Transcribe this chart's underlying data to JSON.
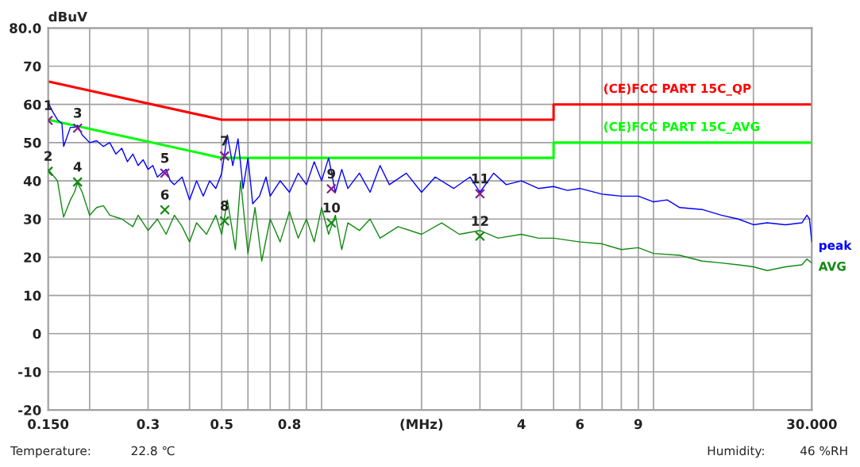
{
  "chart_data": {
    "type": "line",
    "ylabel": "dBuV",
    "log": "x",
    "xlim": [
      0.15,
      30
    ],
    "ylim": [
      -20,
      80
    ],
    "xticks": [
      {
        "value": 0.15,
        "label": "0.150"
      },
      {
        "value": 0.2,
        "label": null
      },
      {
        "value": 0.3,
        "label": "0.3"
      },
      {
        "value": 0.4,
        "label": null
      },
      {
        "value": 0.5,
        "label": "0.5"
      },
      {
        "value": 0.6,
        "label": null
      },
      {
        "value": 0.7,
        "label": null
      },
      {
        "value": 0.8,
        "label": "0.8"
      },
      {
        "value": 0.9,
        "label": null
      },
      {
        "value": 1,
        "label": null
      },
      {
        "value": 2,
        "label": "(MHz)"
      },
      {
        "value": 3,
        "label": null
      },
      {
        "value": 4,
        "label": "4"
      },
      {
        "value": 5,
        "label": null
      },
      {
        "value": 6,
        "label": "6"
      },
      {
        "value": 7,
        "label": null
      },
      {
        "value": 8,
        "label": null
      },
      {
        "value": 9,
        "label": "9"
      },
      {
        "value": 10,
        "label": null
      },
      {
        "value": 20,
        "label": null
      },
      {
        "value": 30,
        "label": "30.000"
      }
    ],
    "yticks": [
      {
        "value": 80,
        "label": "80.0"
      },
      70,
      60,
      50,
      40,
      30,
      20,
      10,
      0,
      -10,
      -20
    ],
    "grid": true,
    "legend": false,
    "series": [
      {
        "name": "(CE)FCC PART 15C_QP",
        "color": "#ff0000",
        "marker": "none",
        "x": [
          0.15,
          0.5,
          5,
          5,
          30
        ],
        "values": [
          66,
          56,
          56,
          60,
          60
        ]
      },
      {
        "name": "(CE)FCC PART 15C_AVG",
        "color": "#00ff00",
        "marker": "none",
        "x": [
          0.15,
          0.5,
          5,
          5,
          30
        ],
        "values": [
          56,
          46,
          46,
          50,
          50
        ]
      },
      {
        "name": "peak",
        "color": "#0000ff",
        "marker": "none",
        "x": [
          0.15,
          0.155,
          0.16,
          0.165,
          0.167,
          0.175,
          0.18,
          0.184,
          0.19,
          0.2,
          0.21,
          0.22,
          0.23,
          0.24,
          0.25,
          0.26,
          0.27,
          0.28,
          0.29,
          0.3,
          0.31,
          0.32,
          0.34,
          0.35,
          0.36,
          0.38,
          0.4,
          0.42,
          0.44,
          0.46,
          0.48,
          0.5,
          0.52,
          0.54,
          0.56,
          0.58,
          0.6,
          0.62,
          0.65,
          0.68,
          0.7,
          0.75,
          0.8,
          0.85,
          0.9,
          0.95,
          1.0,
          1.05,
          1.1,
          1.15,
          1.2,
          1.3,
          1.4,
          1.5,
          1.6,
          1.8,
          2.0,
          2.2,
          2.5,
          2.8,
          3.0,
          3.3,
          3.6,
          4.0,
          4.5,
          5,
          5.5,
          6,
          7,
          8,
          9,
          10,
          11,
          12,
          14,
          16,
          18,
          20,
          22,
          25,
          28,
          29,
          29.5,
          30
        ],
        "values": [
          60.5,
          58,
          56,
          55,
          49,
          54,
          54,
          54.5,
          52,
          50,
          50.5,
          49,
          50,
          47,
          48.5,
          45,
          47,
          44,
          45.5,
          43,
          44,
          41,
          43,
          40,
          39,
          41,
          35,
          40,
          36,
          40,
          38,
          42,
          52,
          44,
          51,
          38,
          46,
          34,
          36,
          41,
          36,
          40,
          37,
          42,
          39,
          45,
          40,
          46,
          37,
          43,
          38,
          42,
          37,
          44,
          39,
          42,
          37,
          41,
          38,
          41,
          37,
          42,
          39,
          40,
          38,
          38.5,
          37.5,
          38,
          36.5,
          36,
          36,
          34.5,
          35,
          33,
          32.5,
          31,
          30,
          28.5,
          29,
          28.5,
          29,
          31,
          30,
          24
        ]
      },
      {
        "name": "AVG",
        "color": "#138a13",
        "marker": "none",
        "x": [
          0.15,
          0.16,
          0.165,
          0.167,
          0.175,
          0.18,
          0.184,
          0.19,
          0.2,
          0.21,
          0.22,
          0.23,
          0.25,
          0.27,
          0.28,
          0.3,
          0.32,
          0.34,
          0.36,
          0.38,
          0.4,
          0.42,
          0.45,
          0.48,
          0.5,
          0.52,
          0.55,
          0.57,
          0.6,
          0.63,
          0.66,
          0.7,
          0.75,
          0.8,
          0.85,
          0.9,
          0.95,
          1.0,
          1.05,
          1.1,
          1.15,
          1.2,
          1.3,
          1.4,
          1.5,
          1.7,
          2.0,
          2.3,
          2.6,
          3.0,
          3.4,
          4.0,
          4.5,
          5,
          6,
          7,
          8,
          9,
          10,
          12,
          14,
          16,
          18,
          20,
          22,
          25,
          28,
          29,
          30
        ],
        "values": [
          43,
          40,
          33,
          30.5,
          35,
          37,
          39.5,
          37,
          31,
          33,
          33.5,
          31,
          30,
          28,
          31,
          27,
          30,
          26,
          31,
          28,
          24,
          29,
          26,
          31,
          26,
          35,
          22,
          40,
          21,
          33,
          19,
          30,
          24,
          32,
          25,
          30,
          24,
          33,
          26,
          31,
          22,
          29,
          27,
          30,
          25,
          28,
          26,
          29,
          26,
          27,
          25,
          26,
          25,
          25,
          24,
          23.5,
          22,
          22.5,
          21,
          20.5,
          19,
          18.5,
          18,
          17.5,
          16.5,
          17.5,
          18,
          19.5,
          18.5
        ]
      },
      {
        "type": "scatter",
        "color": "#8b1a8b",
        "marker": "cross",
        "x": [
          0.15,
          0.184,
          0.337,
          0.51,
          1.07,
          3.0
        ],
        "values": [
          55.8,
          53.8,
          42,
          46.5,
          37.9,
          36.6
        ]
      },
      {
        "type": "scatter",
        "color": "#138a13",
        "marker": "cross",
        "x": [
          0.15,
          0.184,
          0.337,
          0.51,
          1.07,
          3.0
        ],
        "values": [
          42.5,
          39.7,
          32.4,
          29.5,
          29,
          25.5
        ]
      }
    ],
    "annotations": [
      {
        "text": "1",
        "x": 0.15,
        "y": 55.8
      },
      {
        "text": "2",
        "x": 0.15,
        "y": 42.5
      },
      {
        "text": "3",
        "x": 0.184,
        "y": 53.8
      },
      {
        "text": "4",
        "x": 0.184,
        "y": 39.7
      },
      {
        "text": "5",
        "x": 0.337,
        "y": 42
      },
      {
        "text": "6",
        "x": 0.337,
        "y": 32.4
      },
      {
        "text": "7",
        "x": 0.51,
        "y": 46.5
      },
      {
        "text": "8",
        "x": 0.51,
        "y": 29.5
      },
      {
        "text": "9",
        "x": 1.07,
        "y": 37.9
      },
      {
        "text": "10",
        "x": 1.07,
        "y": 29
      },
      {
        "text": "11",
        "x": 3.0,
        "y": 36.6
      },
      {
        "text": "12",
        "x": 3.0,
        "y": 25.5
      },
      "Temperature:",
      "22.8 ℃",
      "Humidity:",
      "46 %RH"
    ]
  }
}
